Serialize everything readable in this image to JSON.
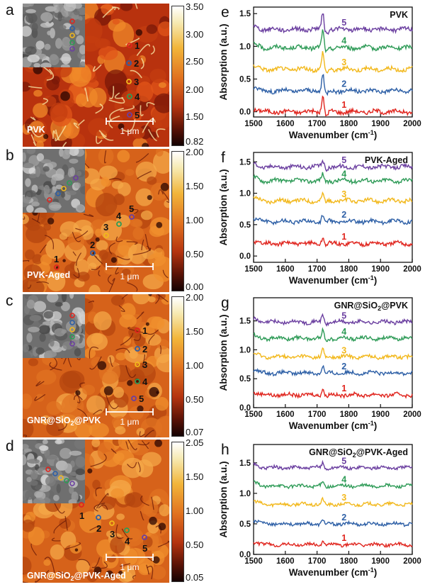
{
  "afm_panels": [
    {
      "letter": "a",
      "label": "PVK",
      "label_main": "PVK",
      "label_sub": "",
      "label_tail": "",
      "scale": "1 μm",
      "ticks": [
        "3.50",
        "3.00",
        "2.50",
        "2.00",
        "1.50",
        "0.82"
      ],
      "points": [
        "1",
        "2",
        "3",
        "4",
        "5"
      ]
    },
    {
      "letter": "b",
      "label": "PVK-Aged",
      "label_main": "PVK-Aged",
      "label_sub": "",
      "label_tail": "",
      "scale": "1 μm",
      "ticks": [
        "2.00",
        "1.50",
        "1.00",
        "0.50",
        "0.00"
      ],
      "points": [
        "1",
        "2",
        "3",
        "4",
        "5"
      ]
    },
    {
      "letter": "c",
      "label": "GNR@SiO2@PVK",
      "label_main": "GNR@SiO",
      "label_sub": "2",
      "label_tail": "@PVK",
      "scale": "1 μm",
      "ticks": [
        "2.00",
        "1.50",
        "1.00",
        "0.50",
        "0.07"
      ],
      "points": [
        "1",
        "2",
        "3",
        "4",
        "5"
      ]
    },
    {
      "letter": "d",
      "label": "GNR@SiO2@PVK-Aged",
      "label_main": "GNR@SiO",
      "label_sub": "2",
      "label_tail": "@PVK-Aged",
      "scale": "1 μm",
      "ticks": [
        "2.05",
        "1.50",
        "1.00",
        "0.50",
        "0.05"
      ],
      "points": [
        "1",
        "2",
        "3",
        "4",
        "5"
      ]
    }
  ],
  "point_colors": [
    "#e0251e",
    "#2d5fa6",
    "#f2b81c",
    "#2e9b57",
    "#6b3fa0"
  ],
  "chart_data": [
    {
      "type": "line",
      "panel": "e",
      "title": "PVK",
      "title_main": "PVK",
      "title_sub": "",
      "title_tail": "",
      "xlabel": "Wavenumber (cm-1)",
      "ylabel": "Absorption (a.u.)",
      "xlim": [
        1500,
        2000
      ],
      "ylim": [
        -0.08,
        1.6
      ],
      "xticks": [
        "1500",
        "1600",
        "1700",
        "1800",
        "1900",
        "2000"
      ],
      "yticks": [
        "0.0",
        "0.5",
        "1.0",
        "1.5"
      ],
      "ytick_values": [
        0.0,
        0.5,
        1.0,
        1.5
      ],
      "offsets": [
        0.0,
        0.32,
        0.65,
        0.98,
        1.26
      ],
      "peak": 0.25,
      "noise": 0.03,
      "series": [
        {
          "name": "1"
        },
        {
          "name": "2"
        },
        {
          "name": "3"
        },
        {
          "name": "4"
        },
        {
          "name": "5"
        }
      ]
    },
    {
      "type": "line",
      "panel": "f",
      "title": "PVK-Aged",
      "title_main": "PVK-Aged",
      "title_sub": "",
      "title_tail": "",
      "xlabel": "Wavenumber (cm-1)",
      "ylabel": "Absorption (a.u.)",
      "xlim": [
        1500,
        2000
      ],
      "ylim": [
        -0.1,
        1.65
      ],
      "xticks": [
        "1500",
        "1600",
        "1700",
        "1800",
        "1900",
        "2000"
      ],
      "yticks": [
        "0.0",
        "0.5",
        "1.0",
        "1.5"
      ],
      "ytick_values": [
        0.0,
        0.5,
        1.0,
        1.5
      ],
      "offsets": [
        0.2,
        0.55,
        0.88,
        1.2,
        1.42
      ],
      "peak": 0.1,
      "noise": 0.03,
      "series": [
        {
          "name": "1"
        },
        {
          "name": "2"
        },
        {
          "name": "3"
        },
        {
          "name": "4"
        },
        {
          "name": "5"
        }
      ]
    },
    {
      "type": "line",
      "panel": "g",
      "title": "GNR@SiO2@PVK",
      "title_main": "GNR@SiO",
      "title_sub": "2",
      "title_tail": "@PVK",
      "xlabel": "Wavenumber (cm-1)",
      "ylabel": "Absorption (a.u.)",
      "xlim": [
        1500,
        2000
      ],
      "ylim": [
        0.0,
        1.9
      ],
      "xticks": [
        "1500",
        "1600",
        "1700",
        "1800",
        "1900",
        "2000"
      ],
      "yticks": [
        "0.0",
        "0.5",
        "1.0",
        "1.5"
      ],
      "ytick_values": [
        0.0,
        0.5,
        1.0,
        1.5
      ],
      "offsets": [
        0.22,
        0.6,
        0.88,
        1.2,
        1.48
      ],
      "peak": 0.12,
      "noise": 0.03,
      "series": [
        {
          "name": "1"
        },
        {
          "name": "2"
        },
        {
          "name": "3"
        },
        {
          "name": "4"
        },
        {
          "name": "5"
        }
      ]
    },
    {
      "type": "line",
      "panel": "h",
      "title": "GNR@SiO2@PVK-Aged",
      "title_main": "GNR@SiO",
      "title_sub": "2",
      "title_tail": "@PVK-Aged",
      "xlabel": "Wavenumber (cm-1)",
      "ylabel": "Absorption (a.u.)",
      "xlim": [
        1500,
        2000
      ],
      "ylim": [
        0.0,
        1.8
      ],
      "xticks": [
        "1500",
        "1600",
        "1700",
        "1800",
        "1900",
        "2000"
      ],
      "yticks": [
        "0.0",
        "0.5",
        "1.0",
        "1.5"
      ],
      "ytick_values": [
        0.0,
        0.5,
        1.0,
        1.5
      ],
      "offsets": [
        0.16,
        0.5,
        0.82,
        1.12,
        1.42
      ],
      "peak": 0.08,
      "noise": 0.025,
      "series": [
        {
          "name": "1"
        },
        {
          "name": "2"
        },
        {
          "name": "3"
        },
        {
          "name": "4"
        },
        {
          "name": "5"
        }
      ]
    }
  ]
}
